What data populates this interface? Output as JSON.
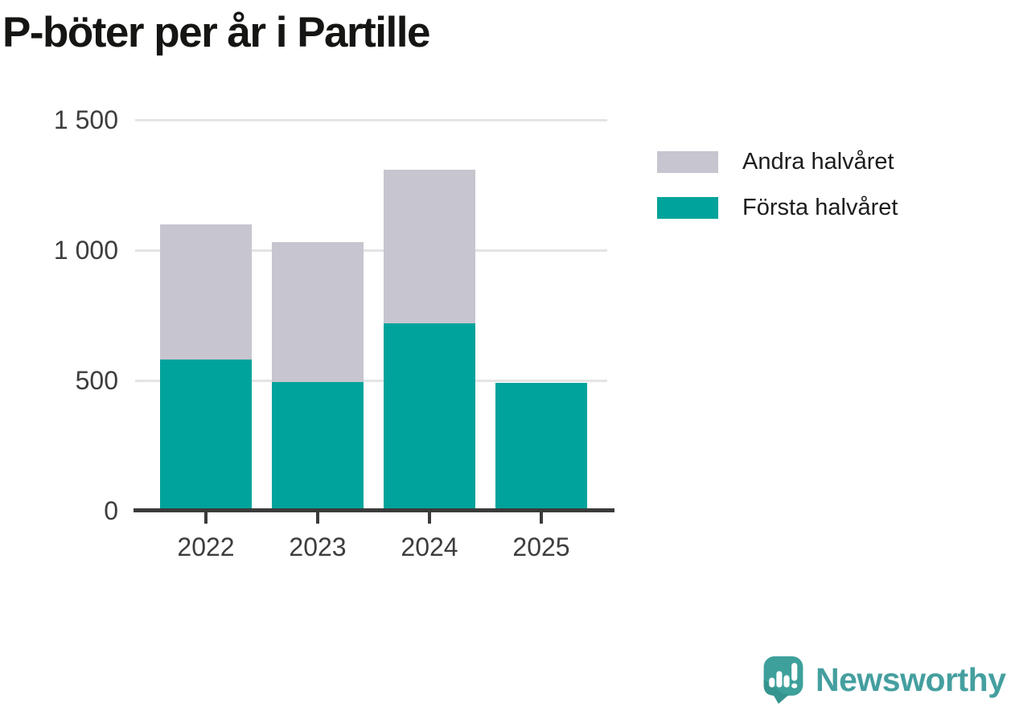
{
  "title": "P-böter per år i Partille",
  "chart_data": {
    "type": "bar",
    "stacked": true,
    "title": "P-böter per år i Partille",
    "categories": [
      "2022",
      "2023",
      "2024",
      "2025"
    ],
    "series": [
      {
        "name": "Första halvåret",
        "color": "#00a39b",
        "values": [
          580,
          495,
          720,
          490
        ]
      },
      {
        "name": "Andra halvåret",
        "color": "#c7c5cf",
        "values": [
          520,
          535,
          590,
          null
        ]
      }
    ],
    "ylim": [
      0,
      1500
    ],
    "yticks": [
      {
        "value": 0,
        "label": "0"
      },
      {
        "value": 500,
        "label": "500"
      },
      {
        "value": 1000,
        "label": "1 000"
      },
      {
        "value": 1500,
        "label": "1 500"
      }
    ],
    "grid": "horizontal",
    "legend_position": "right",
    "legend": [
      {
        "label": "Andra halvåret",
        "color": "#c7c5cf"
      },
      {
        "label": "Första halvåret",
        "color": "#00a39b"
      }
    ]
  },
  "branding": {
    "logo_text": "Newsworthy",
    "logo_text_color": "#459f9f",
    "logo_mark_color": "#3da09b"
  },
  "colors": {
    "axis": "#3b3b3b",
    "gridline": "#e4e3e6",
    "tick_label": "#3d3d3d",
    "title": "#151513"
  }
}
